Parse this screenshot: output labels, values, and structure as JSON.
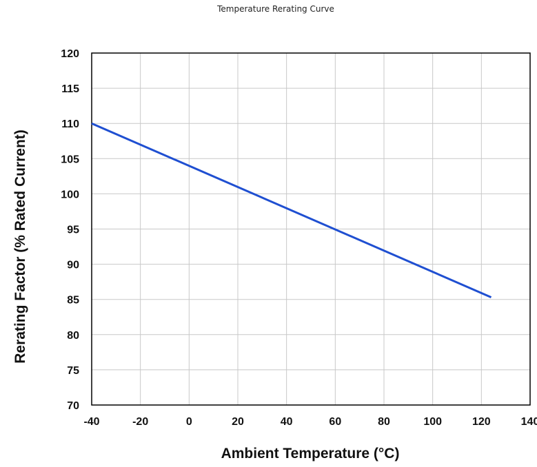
{
  "chart_data": {
    "type": "line",
    "title": "Temperature Rerating Curve",
    "xlabel": "Ambient Temperature (°C)",
    "ylabel": "Rerating Factor (% Rated Current)",
    "xlim": [
      -40,
      140
    ],
    "ylim": [
      70,
      120
    ],
    "x_ticks": [
      "-40",
      "-20",
      "0",
      "20",
      "40",
      "60",
      "80",
      "100",
      "120",
      "140"
    ],
    "y_ticks": [
      "70",
      "75",
      "80",
      "85",
      "90",
      "95",
      "100",
      "105",
      "110",
      "115",
      "120"
    ],
    "grid": true,
    "series": [
      {
        "x": [
          -40,
          124
        ],
        "y": [
          110,
          85.3
        ]
      }
    ],
    "colors": {
      "line": "#1f4fd1",
      "grid": "#c8c8c8",
      "axis": "#000000"
    }
  }
}
